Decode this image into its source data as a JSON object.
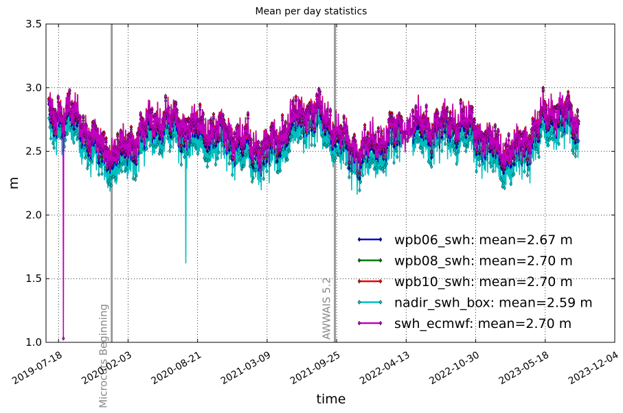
{
  "chart_data": {
    "type": "line",
    "title": "Mean per day statistics",
    "xlabel": "time",
    "ylabel": "m",
    "ylim": [
      1.0,
      3.5
    ],
    "xlim": [
      "2019-06-12",
      "2023-12-04"
    ],
    "yticks": [
      "1.0",
      "1.5",
      "2.0",
      "2.5",
      "3.0",
      "3.5"
    ],
    "xticks": [
      "2019-07-18",
      "2020-02-03",
      "2020-08-21",
      "2021-03-09",
      "2021-09-25",
      "2022-04-13",
      "2022-10-30",
      "2023-05-18",
      "2023-12-04"
    ],
    "grid": true,
    "legend_position": "lower-right",
    "events": [
      {
        "label": "Microcuts Beginning",
        "date": "2019-12-18"
      },
      {
        "label": "AWWAIS 5.2",
        "date": "2021-09-20"
      }
    ],
    "series": [
      {
        "name": "wpb06_swh: mean=2.67 m",
        "color": "#0000cc"
      },
      {
        "name": "wpb08_swh: mean=2.70 m",
        "color": "#007a00"
      },
      {
        "name": "wpb10_swh: mean=2.70 m",
        "color": "#ee0000"
      },
      {
        "name": "nadir_swh_box: mean=2.59 m",
        "color": "#00bfbf"
      },
      {
        "name": "swh_ecmwf: mean=2.70 m",
        "color": "#bf00bf"
      }
    ],
    "x_range": [
      "2019-06-20",
      "2023-08-22"
    ],
    "gap_range": [
      "2022-04-01",
      "2022-04-30"
    ],
    "outliers": [
      {
        "series": "swh_ecmwf: mean=2.70 m",
        "date": "2019-08-01",
        "value": 1.03
      },
      {
        "series": "nadir_swh_box: mean=2.59 m",
        "date": "2020-07-18",
        "value": 1.62
      }
    ]
  }
}
